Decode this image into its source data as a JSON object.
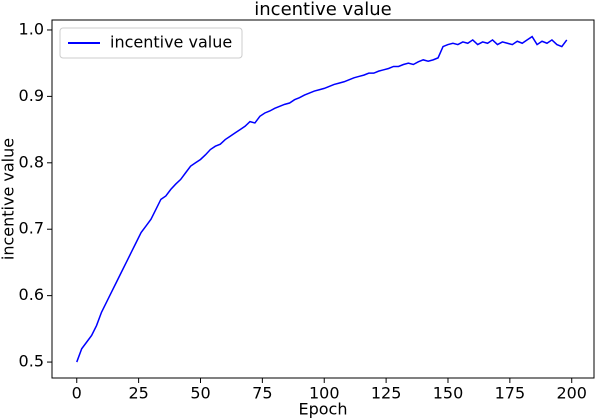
{
  "chart_data": {
    "type": "line",
    "title": "incentive value",
    "xlabel": "Epoch",
    "ylabel": "incentive value",
    "x": [
      0,
      2,
      4,
      6,
      8,
      10,
      12,
      14,
      16,
      18,
      20,
      22,
      24,
      26,
      28,
      30,
      32,
      34,
      36,
      38,
      40,
      42,
      44,
      46,
      48,
      50,
      52,
      54,
      56,
      58,
      60,
      62,
      64,
      66,
      68,
      70,
      72,
      74,
      76,
      78,
      80,
      82,
      84,
      86,
      88,
      90,
      92,
      94,
      96,
      98,
      100,
      102,
      104,
      106,
      108,
      110,
      112,
      114,
      116,
      118,
      120,
      122,
      124,
      126,
      128,
      130,
      132,
      134,
      136,
      138,
      140,
      142,
      144,
      146,
      148,
      150,
      152,
      154,
      156,
      158,
      160,
      162,
      164,
      166,
      168,
      170,
      172,
      174,
      176,
      178,
      180,
      182,
      184,
      186,
      188,
      190,
      192,
      194,
      196,
      198
    ],
    "series": [
      {
        "name": "incentive value",
        "color": "#0000ff",
        "values": [
          0.5,
          0.52,
          0.53,
          0.54,
          0.555,
          0.575,
          0.59,
          0.605,
          0.62,
          0.635,
          0.65,
          0.665,
          0.68,
          0.695,
          0.705,
          0.715,
          0.73,
          0.745,
          0.75,
          0.76,
          0.768,
          0.775,
          0.785,
          0.795,
          0.8,
          0.805,
          0.812,
          0.82,
          0.825,
          0.828,
          0.835,
          0.84,
          0.845,
          0.85,
          0.855,
          0.862,
          0.86,
          0.87,
          0.875,
          0.878,
          0.882,
          0.885,
          0.888,
          0.89,
          0.895,
          0.898,
          0.902,
          0.905,
          0.908,
          0.91,
          0.912,
          0.915,
          0.918,
          0.92,
          0.922,
          0.925,
          0.928,
          0.93,
          0.932,
          0.935,
          0.935,
          0.938,
          0.94,
          0.942,
          0.945,
          0.945,
          0.948,
          0.95,
          0.948,
          0.952,
          0.955,
          0.953,
          0.955,
          0.958,
          0.975,
          0.978,
          0.98,
          0.978,
          0.982,
          0.98,
          0.985,
          0.978,
          0.982,
          0.98,
          0.985,
          0.978,
          0.982,
          0.98,
          0.978,
          0.983,
          0.98,
          0.985,
          0.99,
          0.978,
          0.983,
          0.98,
          0.985,
          0.978,
          0.975,
          0.985
        ]
      }
    ],
    "xlim": [
      -10,
      209
    ],
    "xticks": [
      0,
      25,
      50,
      75,
      100,
      125,
      150,
      175,
      200
    ],
    "ylim": [
      0.476,
      1.015
    ],
    "yticks": [
      0.5,
      0.6,
      0.7,
      0.8,
      0.9,
      {
        "value": 1,
        "label": "1.0"
      }
    ],
    "legend": "upper left",
    "grid": false
  }
}
